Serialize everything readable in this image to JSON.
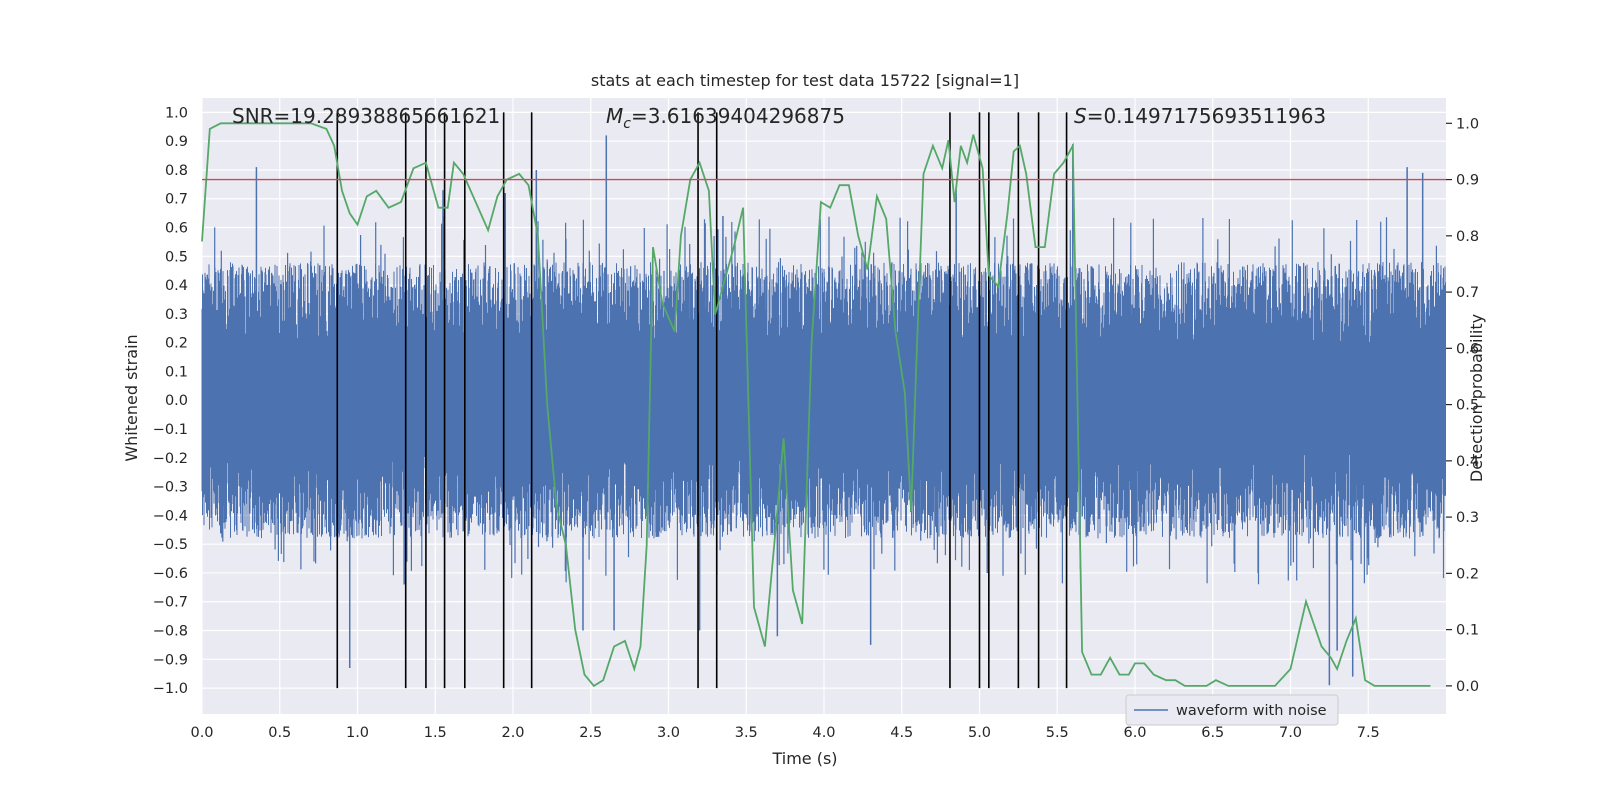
{
  "chart_data": {
    "type": "line",
    "title": "stats at each timestep for test data 15722 [signal=1]",
    "xlabel": "Time (s)",
    "ylabel": "Whitened strain",
    "y2label": "Detection probability",
    "xlim": [
      0.0,
      8.0
    ],
    "ylim": [
      -1.09,
      1.05
    ],
    "y2lim": [
      -0.05,
      1.045
    ],
    "x_ticks": [
      0.0,
      0.5,
      1.0,
      1.5,
      2.0,
      2.5,
      3.0,
      3.5,
      4.0,
      4.5,
      5.0,
      5.5,
      6.0,
      6.5,
      7.0,
      7.5
    ],
    "x_tick_labels": [
      "0.0",
      "0.5",
      "1.0",
      "1.5",
      "2.0",
      "2.5",
      "3.0",
      "3.5",
      "4.0",
      "4.5",
      "5.0",
      "5.5",
      "6.0",
      "6.5",
      "7.0",
      "7.5"
    ],
    "y_ticks": [
      1.0,
      0.9,
      0.8,
      0.7,
      0.6,
      0.5,
      0.4,
      0.3,
      0.2,
      0.1,
      0.0,
      -0.1,
      -0.2,
      -0.3,
      -0.4,
      -0.5,
      -0.6,
      -0.7,
      -0.8,
      -0.9,
      -1.0
    ],
    "y_tick_labels": [
      "1.0",
      "0.9",
      "0.8",
      "0.7",
      "0.6",
      "0.5",
      "0.4",
      "0.3",
      "0.2",
      "0.1",
      "0.0",
      "−0.1",
      "−0.2",
      "−0.3",
      "−0.4",
      "−0.5",
      "−0.6",
      "−0.7",
      "−0.8",
      "−0.9",
      "−1.0"
    ],
    "y2_ticks": [
      1.0,
      0.9,
      0.8,
      0.7,
      0.6,
      0.5,
      0.4,
      0.3,
      0.2,
      0.1,
      0.0
    ],
    "y2_tick_labels": [
      "1.0",
      "0.9",
      "0.8",
      "0.7",
      "0.6",
      "0.5",
      "0.4",
      "0.3",
      "0.2",
      "0.1",
      "0.0"
    ],
    "grid": true,
    "legend": {
      "position": "lower-right",
      "entries": [
        "waveform with noise"
      ]
    },
    "annotations": {
      "snr": "SNR=19.28938865661621",
      "mc_symbol": "M",
      "mc_subscript": "c",
      "mc_value": "=3.61639404296875",
      "s_symbol": "S",
      "s_value": "=0.1497175693511963"
    },
    "series": [
      {
        "name": "waveform with noise",
        "axis": "left",
        "color": "#4c72b0",
        "style": "dense noisy strain, envelope approx ±0.4 with spikes to ±0.9",
        "upper_envelope": 0.4,
        "lower_envelope": -0.4,
        "spikes": [
          [
            0.35,
            0.81
          ],
          [
            0.95,
            -0.93
          ],
          [
            1.3,
            -0.64
          ],
          [
            1.55,
            0.73
          ],
          [
            1.95,
            0.72
          ],
          [
            2.15,
            0.8
          ],
          [
            2.45,
            -0.8
          ],
          [
            2.6,
            0.92
          ],
          [
            2.65,
            -0.8
          ],
          [
            3.2,
            -0.8
          ],
          [
            3.35,
            0.64
          ],
          [
            3.7,
            -0.82
          ],
          [
            4.3,
            -0.85
          ],
          [
            4.85,
            0.73
          ],
          [
            5.05,
            -0.6
          ],
          [
            5.6,
            0.89
          ],
          [
            7.25,
            -0.99
          ],
          [
            7.3,
            -0.87
          ],
          [
            7.4,
            -0.96
          ],
          [
            7.75,
            0.81
          ],
          [
            7.85,
            0.79
          ]
        ]
      },
      {
        "name": "",
        "axis": "right",
        "color": "#55a868",
        "x": [
          0.0,
          0.05,
          0.12,
          0.2,
          0.3,
          0.5,
          0.7,
          0.8,
          0.85,
          0.9,
          0.95,
          1.0,
          1.06,
          1.12,
          1.2,
          1.28,
          1.36,
          1.44,
          1.52,
          1.58,
          1.62,
          1.68,
          1.76,
          1.84,
          1.9,
          1.96,
          2.04,
          2.1,
          2.16,
          2.22,
          2.28,
          2.34,
          2.4,
          2.46,
          2.52,
          2.58,
          2.65,
          2.72,
          2.78,
          2.82,
          2.86,
          2.9,
          2.96,
          3.04,
          3.08,
          3.14,
          3.2,
          3.26,
          3.3,
          3.36,
          3.42,
          3.48,
          3.55,
          3.62,
          3.68,
          3.74,
          3.8,
          3.86,
          3.92,
          3.98,
          4.04,
          4.1,
          4.16,
          4.22,
          4.28,
          4.34,
          4.4,
          4.46,
          4.52,
          4.56,
          4.6,
          4.64,
          4.7,
          4.76,
          4.8,
          4.84,
          4.88,
          4.92,
          4.96,
          5.02,
          5.06,
          5.12,
          5.18,
          5.22,
          5.26,
          5.3,
          5.36,
          5.42,
          5.48,
          5.54,
          5.6,
          5.66,
          5.72,
          5.78,
          5.84,
          5.9,
          5.96,
          6.0,
          6.06,
          6.12,
          6.2,
          6.26,
          6.32,
          6.4,
          6.46,
          6.52,
          6.6,
          6.7,
          6.8,
          6.9,
          7.0,
          7.1,
          7.2,
          7.26,
          7.3,
          7.36,
          7.42,
          7.48,
          7.54,
          7.6,
          7.66,
          7.72,
          7.8,
          7.9
        ],
        "values": [
          0.79,
          0.99,
          1.0,
          1.0,
          1.0,
          1.0,
          1.0,
          0.99,
          0.96,
          0.88,
          0.84,
          0.82,
          0.87,
          0.88,
          0.85,
          0.86,
          0.92,
          0.93,
          0.85,
          0.85,
          0.93,
          0.91,
          0.86,
          0.81,
          0.87,
          0.9,
          0.91,
          0.89,
          0.8,
          0.5,
          0.32,
          0.25,
          0.1,
          0.02,
          0.0,
          0.01,
          0.07,
          0.08,
          0.03,
          0.07,
          0.25,
          0.78,
          0.68,
          0.63,
          0.8,
          0.9,
          0.93,
          0.88,
          0.66,
          0.72,
          0.78,
          0.85,
          0.14,
          0.07,
          0.25,
          0.44,
          0.17,
          0.11,
          0.61,
          0.86,
          0.85,
          0.89,
          0.89,
          0.8,
          0.74,
          0.87,
          0.83,
          0.63,
          0.52,
          0.31,
          0.62,
          0.91,
          0.96,
          0.92,
          0.97,
          0.86,
          0.96,
          0.93,
          0.98,
          0.92,
          0.73,
          0.71,
          0.84,
          0.95,
          0.96,
          0.91,
          0.78,
          0.78,
          0.91,
          0.93,
          0.96,
          0.06,
          0.02,
          0.02,
          0.05,
          0.02,
          0.02,
          0.04,
          0.04,
          0.02,
          0.01,
          0.01,
          0.0,
          0.0,
          0.0,
          0.01,
          0.0,
          0.0,
          0.0,
          0.0,
          0.03,
          0.15,
          0.07,
          0.05,
          0.03,
          0.08,
          0.12,
          0.01,
          0.0,
          0.0,
          0.0,
          0.0,
          0.0,
          0.0
        ]
      },
      {
        "name": "",
        "axis": "right",
        "color": "#c44e52",
        "style": "threshold line",
        "x": [
          0.0,
          8.0
        ],
        "values": [
          0.9,
          0.9
        ]
      }
    ],
    "vlines": [
      0.87,
      1.31,
      1.44,
      1.56,
      1.69,
      1.94,
      2.12,
      3.19,
      3.31,
      4.81,
      5.0,
      5.06,
      5.25,
      5.38,
      5.56
    ],
    "vline_color": "#000000"
  }
}
